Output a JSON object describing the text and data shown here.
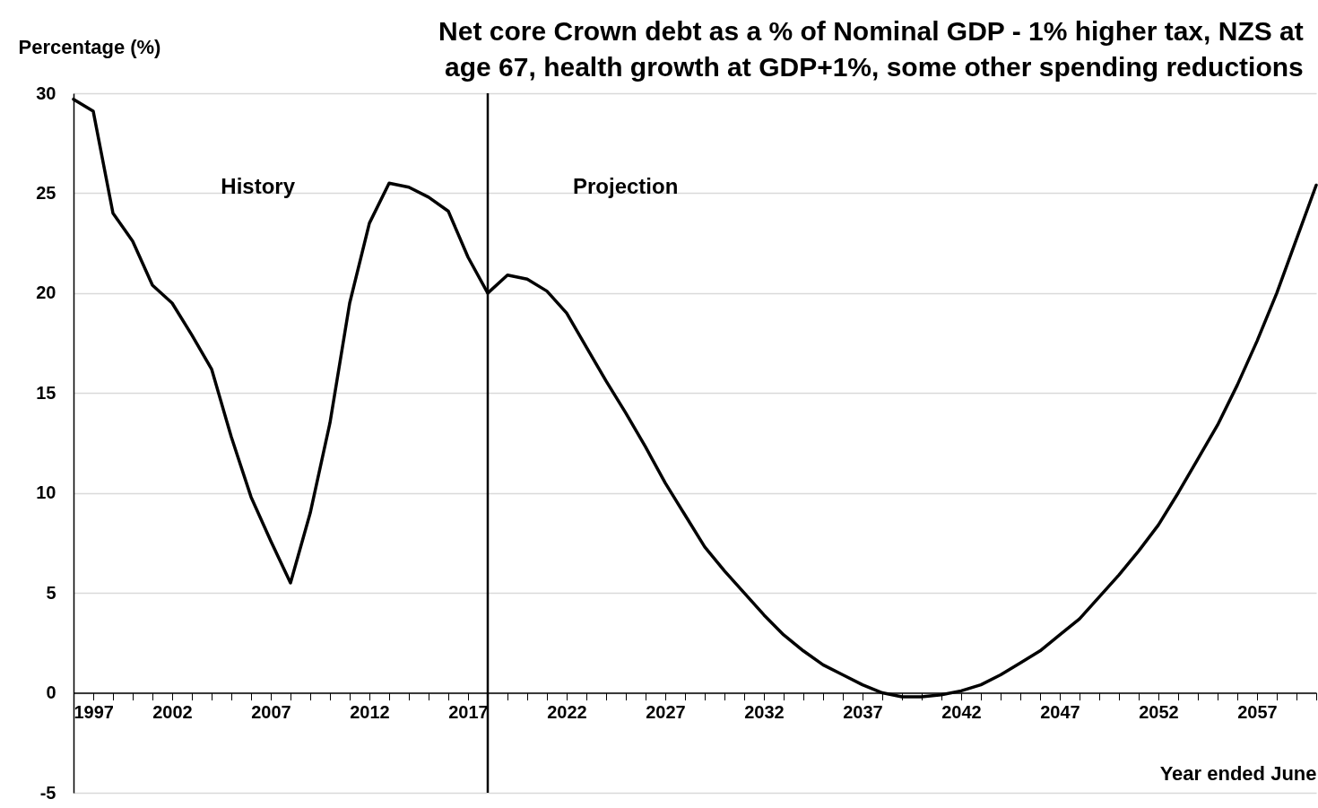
{
  "chart_data": {
    "type": "line",
    "title": "Net core Crown debt as a % of Nominal GDP - 1% higher tax, NZS at age 67, health growth at GDP+1%, some other spending reductions",
    "xlabel": "Year ended June",
    "ylabel": "Percentage (%)",
    "x": [
      1997,
      1998,
      1999,
      2000,
      2001,
      2002,
      2003,
      2004,
      2005,
      2006,
      2007,
      2008,
      2009,
      2010,
      2011,
      2012,
      2013,
      2014,
      2015,
      2016,
      2017,
      2018,
      2019,
      2020,
      2021,
      2022,
      2023,
      2024,
      2025,
      2026,
      2027,
      2028,
      2029,
      2030,
      2031,
      2032,
      2033,
      2034,
      2035,
      2036,
      2037,
      2038,
      2039,
      2040,
      2041,
      2042,
      2043,
      2044,
      2045,
      2046,
      2047,
      2048,
      2049,
      2050,
      2051,
      2052,
      2053,
      2054,
      2055,
      2056,
      2057,
      2058,
      2059,
      2060
    ],
    "series": [
      {
        "color": "#000000",
        "values": [
          29.7,
          29.1,
          24.0,
          22.6,
          20.4,
          19.5,
          17.9,
          16.2,
          12.8,
          9.8,
          7.6,
          5.5,
          9.0,
          13.5,
          19.5,
          23.5,
          25.5,
          25.3,
          24.8,
          24.1,
          21.8,
          20.0,
          20.9,
          20.7,
          20.1,
          19.0,
          17.3,
          15.6,
          14.0,
          12.3,
          10.5,
          8.9,
          7.3,
          6.1,
          5.0,
          3.9,
          2.9,
          2.1,
          1.4,
          0.9,
          0.4,
          0.0,
          -0.2,
          -0.2,
          -0.1,
          0.1,
          0.4,
          0.9,
          1.5,
          2.1,
          2.9,
          3.7,
          4.8,
          5.9,
          7.1,
          8.4,
          10.0,
          11.7,
          13.4,
          15.4,
          17.6,
          20.0,
          22.7,
          25.4
        ]
      }
    ],
    "xlim": [
      1997,
      2060
    ],
    "xticks": [
      1997,
      {
        "value": 1998,
        "label": null
      },
      {
        "value": 1999,
        "label": null
      },
      {
        "value": 2000,
        "label": null
      },
      {
        "value": 2001,
        "label": null
      },
      2002,
      {
        "value": 2003,
        "label": null
      },
      {
        "value": 2004,
        "label": null
      },
      {
        "value": 2005,
        "label": null
      },
      {
        "value": 2006,
        "label": null
      },
      2007,
      {
        "value": 2008,
        "label": null
      },
      {
        "value": 2009,
        "label": null
      },
      {
        "value": 2010,
        "label": null
      },
      {
        "value": 2011,
        "label": null
      },
      2012,
      {
        "value": 2013,
        "label": null
      },
      {
        "value": 2014,
        "label": null
      },
      {
        "value": 2015,
        "label": null
      },
      {
        "value": 2016,
        "label": null
      },
      2017,
      {
        "value": 2018,
        "label": null
      },
      {
        "value": 2019,
        "label": null
      },
      {
        "value": 2020,
        "label": null
      },
      {
        "value": 2021,
        "label": null
      },
      2022,
      {
        "value": 2023,
        "label": null
      },
      {
        "value": 2024,
        "label": null
      },
      {
        "value": 2025,
        "label": null
      },
      {
        "value": 2026,
        "label": null
      },
      2027,
      {
        "value": 2028,
        "label": null
      },
      {
        "value": 2029,
        "label": null
      },
      {
        "value": 2030,
        "label": null
      },
      {
        "value": 2031,
        "label": null
      },
      2032,
      {
        "value": 2033,
        "label": null
      },
      {
        "value": 2034,
        "label": null
      },
      {
        "value": 2035,
        "label": null
      },
      {
        "value": 2036,
        "label": null
      },
      2037,
      {
        "value": 2038,
        "label": null
      },
      {
        "value": 2039,
        "label": null
      },
      {
        "value": 2040,
        "label": null
      },
      {
        "value": 2041,
        "label": null
      },
      2042,
      {
        "value": 2043,
        "label": null
      },
      {
        "value": 2044,
        "label": null
      },
      {
        "value": 2045,
        "label": null
      },
      {
        "value": 2046,
        "label": null
      },
      2047,
      {
        "value": 2048,
        "label": null
      },
      {
        "value": 2049,
        "label": null
      },
      {
        "value": 2050,
        "label": null
      },
      {
        "value": 2051,
        "label": null
      },
      2052,
      {
        "value": 2053,
        "label": null
      },
      {
        "value": 2054,
        "label": null
      },
      {
        "value": 2055,
        "label": null
      },
      {
        "value": 2056,
        "label": null
      },
      2057,
      {
        "value": 2058,
        "label": null
      },
      {
        "value": 2059,
        "label": null
      },
      {
        "value": 2060,
        "label": null
      }
    ],
    "ylim": [
      -5,
      30
    ],
    "yticks": [
      -5,
      0,
      5,
      10,
      15,
      20,
      25,
      30
    ],
    "grid": "y",
    "ref_lines": [
      {
        "axis": "x",
        "value": 2018,
        "color": "#000000"
      }
    ],
    "annotations": [
      "History",
      "Projection"
    ]
  }
}
